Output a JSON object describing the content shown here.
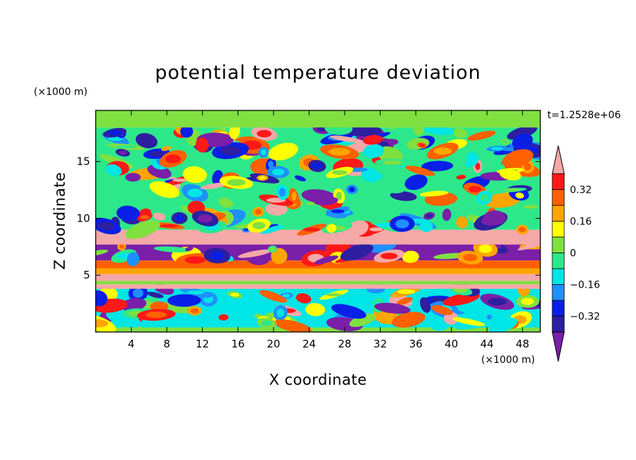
{
  "chart_data": {
    "type": "heatmap",
    "title": "potential temperature deviation",
    "xlabel": "X coordinate",
    "ylabel": "Z coordinate",
    "x_unit": "(×1000 m)",
    "y_unit": "(×1000 m)",
    "time_label": "t=1.2528e+06",
    "xlim": [
      0,
      50
    ],
    "ylim": [
      0,
      19.5
    ],
    "x_ticks": [
      4,
      8,
      12,
      16,
      20,
      24,
      28,
      32,
      36,
      40,
      44,
      48
    ],
    "y_ticks": [
      5,
      10,
      15
    ],
    "colorbar": {
      "levels": [
        -0.4,
        -0.32,
        -0.24,
        -0.16,
        -0.08,
        0,
        0.08,
        0.16,
        0.24,
        0.32,
        0.4
      ],
      "tick_labels": [
        "0.32",
        "0.16",
        "0",
        "−0.16",
        "−0.32"
      ],
      "tick_values": [
        0.32,
        0.16,
        0,
        -0.16,
        -0.32
      ],
      "colors_low_to_high": [
        "#7a1fa8",
        "#2d1fa0",
        "#0a1fe6",
        "#1e90ff",
        "#00e5e5",
        "#2de88a",
        "#80e040",
        "#ffff00",
        "#ffa500",
        "#ff6000",
        "#ff1818",
        "#f5a8a8"
      ],
      "extend": "both"
    },
    "bands": [
      {
        "z": [
          0,
          0.4
        ],
        "level": 6
      },
      {
        "z": [
          0.4,
          3.8
        ],
        "level": 4,
        "pattern": "mixed"
      },
      {
        "z": [
          3.8,
          4.2
        ],
        "level": 11
      },
      {
        "z": [
          4.2,
          4.5
        ],
        "level": 6
      },
      {
        "z": [
          4.5,
          5.1
        ],
        "level": 11
      },
      {
        "z": [
          5.1,
          5.6
        ],
        "level": 8
      },
      {
        "z": [
          5.6,
          6.3
        ],
        "level": 9
      },
      {
        "z": [
          6.3,
          7.7
        ],
        "level": 0,
        "pattern": "mixed"
      },
      {
        "z": [
          7.7,
          9.0
        ],
        "level": 11
      },
      {
        "z": [
          9.0,
          18.0
        ],
        "level": 5,
        "pattern": "mixed"
      },
      {
        "z": [
          18.0,
          19.5
        ],
        "level": 6
      }
    ]
  }
}
